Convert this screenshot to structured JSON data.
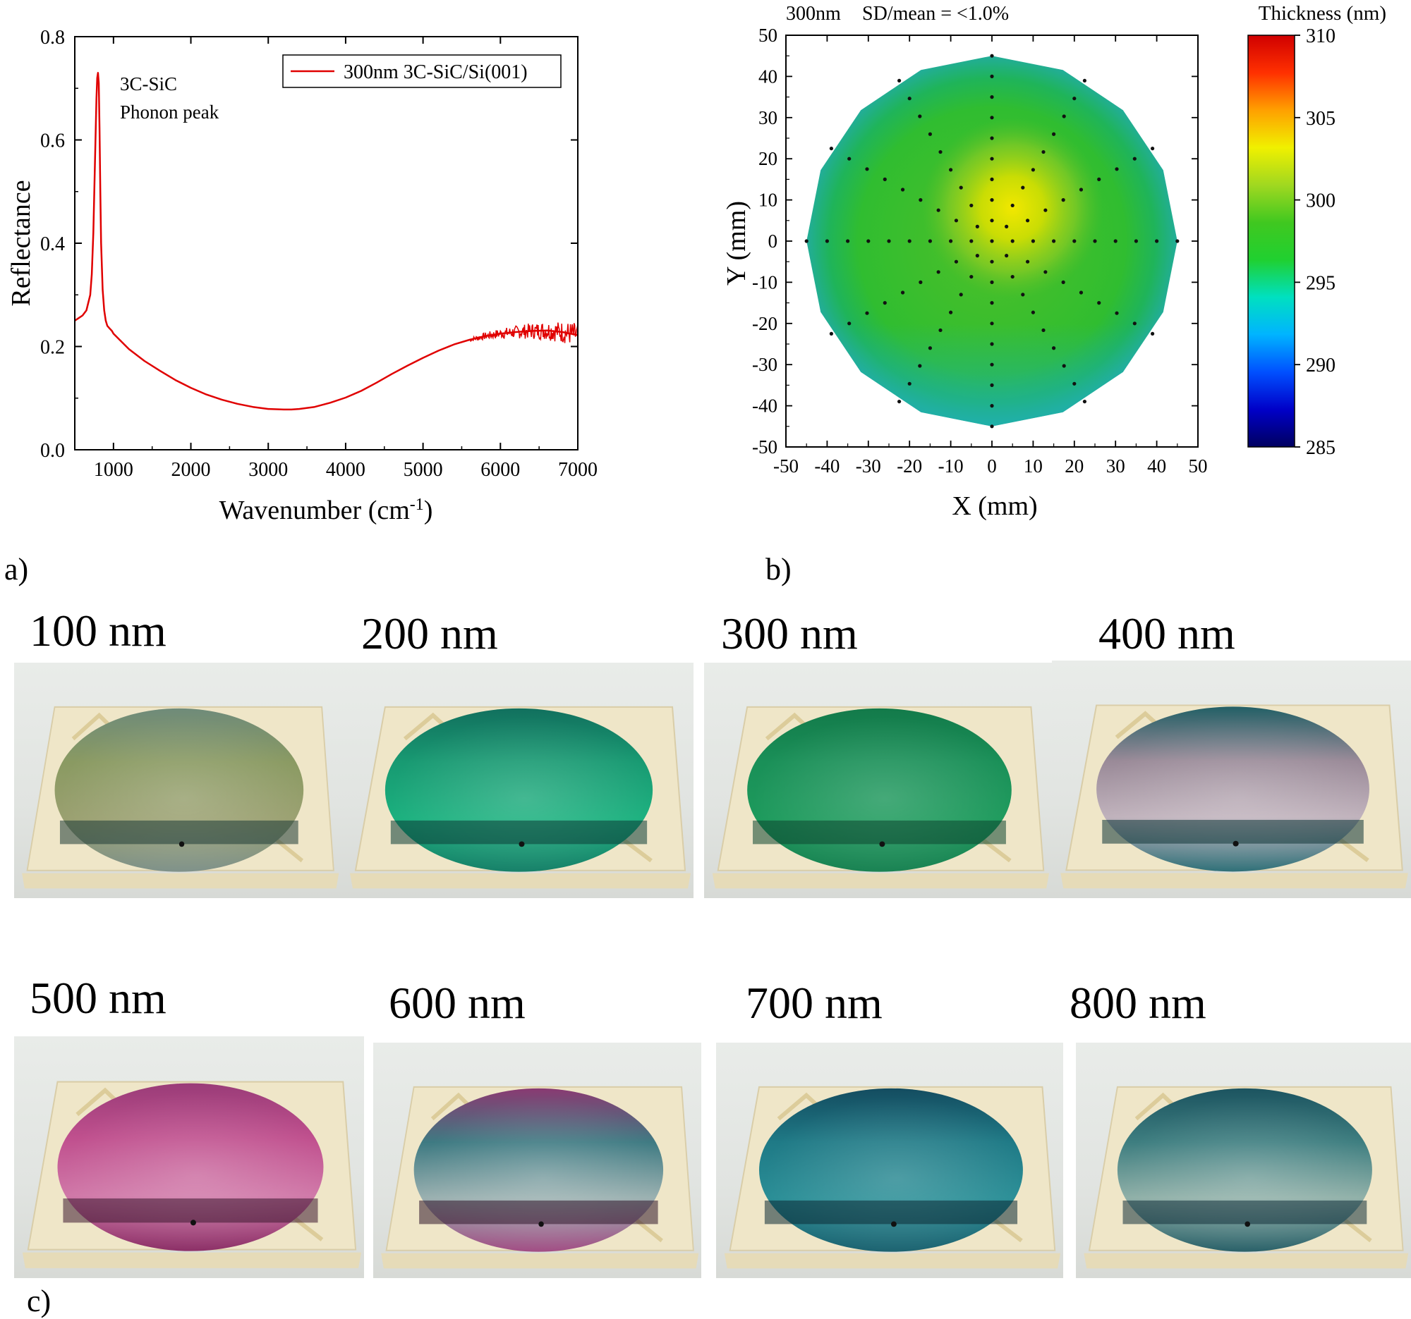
{
  "panel_labels": {
    "a": "a)",
    "b": "b)",
    "c": "c)"
  },
  "chart_data": [
    {
      "type": "line",
      "xlabel_main": "Wavenumber (cm",
      "xlabel_sup": "-1",
      "xlabel_end": ")",
      "ylabel": "Reflectance",
      "xlim": [
        500,
        7000
      ],
      "ylim": [
        0.0,
        0.8
      ],
      "xticks": [
        1000,
        2000,
        3000,
        4000,
        5000,
        6000,
        7000
      ],
      "yticks": [
        0.0,
        0.2,
        0.4,
        0.6,
        0.8
      ],
      "ytick_labels": [
        "0.0",
        "0.2",
        "0.4",
        "0.6",
        "0.8"
      ],
      "legend_position": "top-right",
      "annotation": [
        "3C-SiC",
        "Phonon peak"
      ],
      "series": [
        {
          "name": "300nm 3C-SiC/Si(001)",
          "color": "#e00000",
          "x": [
            500,
            550,
            600,
            650,
            700,
            720,
            740,
            760,
            780,
            790,
            800,
            810,
            820,
            830,
            840,
            860,
            880,
            900,
            920,
            950,
            980,
            1000,
            1100,
            1200,
            1400,
            1600,
            1800,
            2000,
            2200,
            2400,
            2600,
            2800,
            3000,
            3200,
            3300,
            3400,
            3600,
            3800,
            4000,
            4200,
            4400,
            4600,
            4800,
            5000,
            5200,
            5400,
            5600,
            5800,
            6000,
            6200,
            6400,
            6600,
            6800,
            7000
          ],
          "y": [
            0.25,
            0.255,
            0.26,
            0.27,
            0.3,
            0.34,
            0.42,
            0.55,
            0.68,
            0.72,
            0.73,
            0.71,
            0.62,
            0.5,
            0.4,
            0.31,
            0.27,
            0.25,
            0.24,
            0.235,
            0.23,
            0.225,
            0.21,
            0.195,
            0.172,
            0.153,
            0.135,
            0.12,
            0.107,
            0.097,
            0.089,
            0.083,
            0.079,
            0.078,
            0.078,
            0.079,
            0.083,
            0.091,
            0.101,
            0.114,
            0.13,
            0.147,
            0.163,
            0.178,
            0.192,
            0.204,
            0.213,
            0.22,
            0.225,
            0.228,
            0.23,
            0.231,
            0.228,
            0.222
          ]
        }
      ]
    },
    {
      "type": "heatmap",
      "title_left": "300nm",
      "title_right": "SD/mean = <1.0%",
      "xlabel": "X (mm)",
      "ylabel": "Y (mm)",
      "xlim": [
        -50,
        50
      ],
      "ylim": [
        -50,
        50
      ],
      "xticks": [
        -50,
        -40,
        -30,
        -20,
        -10,
        0,
        10,
        20,
        30,
        40,
        50
      ],
      "yticks": [
        -50,
        -40,
        -30,
        -20,
        -10,
        0,
        10,
        20,
        30,
        40,
        50
      ],
      "wafer_radius_mm": 45,
      "peak_center_mm": [
        5,
        8
      ],
      "peak_value": 303.5,
      "mean_value": 298.5,
      "edge_value": 293.5,
      "colorbar": {
        "label": "Thickness (nm)",
        "min": 285,
        "max": 310,
        "ticks": [
          285,
          290,
          295,
          300,
          305,
          310
        ],
        "colors": [
          "#000060",
          "#0000c8",
          "#0050ff",
          "#00b4ff",
          "#00e0c0",
          "#20d030",
          "#40c820",
          "#a0d820",
          "#f0f000",
          "#ffa000",
          "#ff3000",
          "#d00000"
        ]
      },
      "measurement_rings": [
        {
          "r": 0,
          "n": 1
        },
        {
          "r": 5,
          "n": 8
        },
        {
          "r": 10,
          "n": 12
        },
        {
          "r": 15,
          "n": 12
        },
        {
          "r": 20,
          "n": 12
        },
        {
          "r": 25,
          "n": 12
        },
        {
          "r": 30,
          "n": 12
        },
        {
          "r": 35,
          "n": 12
        },
        {
          "r": 40,
          "n": 12
        },
        {
          "r": 45,
          "n": 12
        }
      ]
    }
  ],
  "photos": [
    {
      "label": "100 nm",
      "film": [
        "#6f8b7a",
        "#8a9a62",
        "#9aa070",
        "#7d9088"
      ],
      "band": "#1d3a36"
    },
    {
      "label": "200 nm",
      "film": [
        "#12705e",
        "#189a72",
        "#1bb07e",
        "#137e66"
      ],
      "band": "#0b3d37"
    },
    {
      "label": "300 nm",
      "film": [
        "#137a4a",
        "#1a9058",
        "#1d9a5c",
        "#168050"
      ],
      "band": "#0c4630"
    },
    {
      "label": "400 nm",
      "film": [
        "#236066",
        "#9a8a98",
        "#c0b2bc",
        "#2c6e76"
      ],
      "band": "#0f3436"
    },
    {
      "label": "500 nm",
      "film": [
        "#9a3c78",
        "#c0508e",
        "#d078a8",
        "#8a2c64"
      ],
      "band": "#3c1830"
    },
    {
      "label": "600 nm",
      "film": [
        "#8a3a72",
        "#3e7a82",
        "#9ab0b0",
        "#a04a82"
      ],
      "band": "#30162a"
    },
    {
      "label": "700 nm",
      "film": [
        "#144c60",
        "#1f7a86",
        "#2a8e96",
        "#19606e"
      ],
      "band": "#0b2a34"
    },
    {
      "label": "800 nm",
      "film": [
        "#1c5460",
        "#3e7e80",
        "#90b0a8",
        "#265e66"
      ],
      "band": "#13303a"
    }
  ]
}
